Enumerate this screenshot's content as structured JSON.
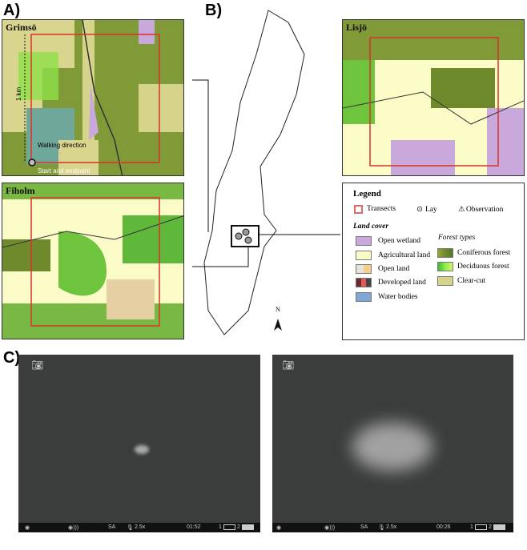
{
  "panels": {
    "a": "A)",
    "b": "B)",
    "c": "C)"
  },
  "maps": {
    "grimso": {
      "title": "Grimsö",
      "scale": "1 km",
      "walking": "Walking direction",
      "start": "Start and endpoint"
    },
    "fiholm": {
      "title": "Fiholm"
    },
    "lisjo": {
      "title": "Lisjö"
    }
  },
  "sweden": {
    "north": "N"
  },
  "legend": {
    "title": "Legend",
    "transects": "Transects",
    "lay": "Lay",
    "observation": "Observation",
    "land_cover_title": "Land cover",
    "land_cover": [
      {
        "label": "Open wetland",
        "color": "#c9a9dc"
      },
      {
        "label": "Agricultural land",
        "color": "#fbfbc8"
      },
      {
        "label": "Open land",
        "color": "#e6e3dc"
      },
      {
        "label": "Developed land",
        "color": "#8a3a3a"
      },
      {
        "label": "Water bodies",
        "color": "#7ea7d4"
      }
    ],
    "forest_title": "Forest types",
    "forest": [
      {
        "label": "Coniferous forest",
        "color": "#6f8a2c"
      },
      {
        "label": "Deciduous forest",
        "color": "#5fd63a"
      },
      {
        "label": "Clear-cut",
        "color": "#d6d48a"
      }
    ]
  },
  "cameras": [
    {
      "mode": "SA",
      "zoom": "2.5x",
      "time": "01:52",
      "slot1": "1",
      "slot2": "2"
    },
    {
      "mode": "SA",
      "zoom": "2.5x",
      "time": "00:26",
      "slot1": "1",
      "slot2": "2"
    }
  ]
}
